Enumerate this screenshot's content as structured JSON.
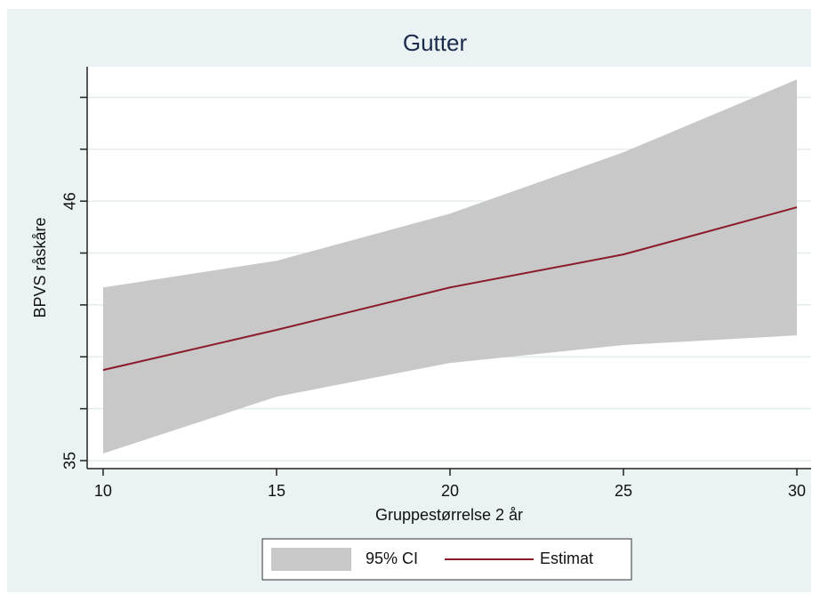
{
  "chart_data": {
    "type": "band-line",
    "title": "Gutter",
    "x_label": "Gruppestørrelse 2 år",
    "y_label": "BPVS råskåre",
    "x": [
      10,
      15,
      20,
      25,
      30
    ],
    "series": [
      {
        "name": "95% CI",
        "color": "#c8c8c8",
        "lower": [
          35.3,
          37.71,
          39.14,
          39.9,
          40.31
        ],
        "upper": [
          42.34,
          43.47,
          45.47,
          48.07,
          51.16
        ]
      },
      {
        "name": "Estimat",
        "color": "#8b1a2b",
        "values": [
          38.84,
          40.54,
          42.34,
          43.74,
          45.74
        ]
      }
    ],
    "xlim": [
      9.54,
      30.41
    ],
    "xticks": [
      10,
      15,
      20,
      25,
      30
    ],
    "ylim": [
      34.66,
      51.7
    ],
    "yticks": [
      35,
      46
    ],
    "yminorticks": [
      37.2,
      39.4,
      41.6,
      43.8,
      48.2,
      50.4
    ],
    "grid": true
  }
}
